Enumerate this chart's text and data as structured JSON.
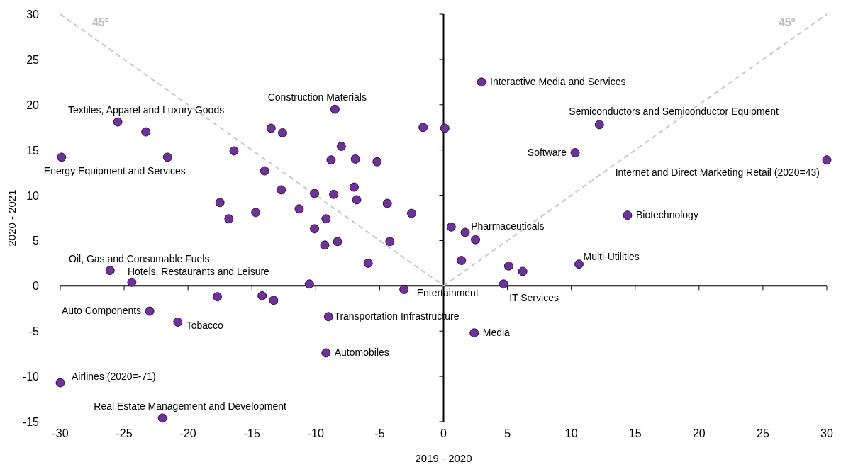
{
  "chart_data": {
    "type": "scatter",
    "xlabel": "2019 - 2020",
    "ylabel": "2020 - 2021",
    "xlim": [
      -30,
      30
    ],
    "xticks": [
      -30,
      -25,
      -20,
      -15,
      -10,
      -5,
      0,
      5,
      10,
      15,
      20,
      25,
      30
    ],
    "ylim": [
      -15,
      30
    ],
    "yticks": [
      -15,
      -10,
      -5,
      0,
      5,
      10,
      15,
      20,
      25,
      30
    ],
    "marker": "circle",
    "series": [
      {
        "type": "line",
        "color": "#c8c8c8",
        "line_style": "dashed",
        "marker": "none",
        "x": [
          -30,
          0
        ],
        "values": [
          30,
          0
        ]
      },
      {
        "type": "line",
        "color": "#c8c8c8",
        "line_style": "dashed",
        "marker": "none",
        "x": [
          0,
          30
        ],
        "values": [
          0,
          30
        ]
      },
      {
        "color": "#7030a0",
        "x": [
          2.97,
          12.2,
          10.3,
          30,
          14.4,
          10.6,
          5.1,
          6.2,
          4.7,
          2.4,
          1.7,
          0.6,
          2.5,
          1.4,
          0.1,
          -1.6,
          -8.5,
          -3.1,
          -9.0,
          -9.2,
          -10.5,
          -17.7,
          -14.2,
          -13.3,
          -23.0,
          -20.8,
          -30,
          -22.0,
          -26.1,
          -24.4,
          -25.5,
          -23.3,
          -29.9,
          -21.6,
          -16.4,
          -13.5,
          -12.6,
          -14.0,
          -17.5,
          -16.8,
          -14.7,
          -12.7,
          -11.3,
          -10.1,
          -10.1,
          -8.8,
          -8.0,
          -6.9,
          -5.2,
          -8.6,
          -9.2,
          -9.3,
          -8.3,
          -7.0,
          -6.8,
          -4.4,
          -2.5,
          -4.2,
          -5.9
        ],
        "values": [
          22.5,
          17.8,
          14.7,
          13.9,
          7.8,
          2.4,
          2.2,
          1.6,
          0.2,
          -5.2,
          5.9,
          6.5,
          5.1,
          2.8,
          17.4,
          17.5,
          19.5,
          -0.4,
          -3.4,
          -7.4,
          0.2,
          -1.2,
          -1.1,
          -1.6,
          -2.8,
          -4.0,
          -10.7,
          -14.6,
          1.7,
          0.4,
          18.1,
          17.0,
          14.2,
          14.2,
          14.9,
          17.4,
          16.9,
          12.7,
          9.2,
          7.4,
          8.1,
          10.6,
          8.5,
          10.2,
          6.3,
          13.9,
          15.4,
          14.0,
          13.7,
          10.1,
          7.4,
          4.5,
          4.9,
          10.9,
          9.5,
          9.1,
          8.0,
          4.9,
          2.5
        ]
      }
    ],
    "annotations": [
      {
        "text": "Interactive Media and Services",
        "x": 2.97,
        "y": 22.5
      },
      {
        "text": "Semiconductors and Semiconductor Equipment",
        "x": 12.2,
        "y": 17.8
      },
      {
        "text": "Software",
        "x": 10.3,
        "y": 14.7
      },
      {
        "text": "Internet and Direct Marketing Retail (2020=43)",
        "x": 30,
        "y": 13.9
      },
      {
        "text": "Biotechnology",
        "x": 14.4,
        "y": 7.8
      },
      {
        "text": "Multi-Utilities",
        "x": 10.6,
        "y": 2.4
      },
      {
        "text": "IT Services",
        "x": 4.7,
        "y": 0.2
      },
      {
        "text": "Media",
        "x": 2.4,
        "y": -5.2
      },
      {
        "text": "Pharmaceuticals",
        "x": 1.7,
        "y": 5.9
      },
      {
        "text": "Entertainment",
        "x": -3.1,
        "y": -0.4
      },
      {
        "text": "Transportation Infrastructure",
        "x": -9.0,
        "y": -3.4
      },
      {
        "text": "Automobiles",
        "x": -9.2,
        "y": -7.4
      },
      {
        "text": "Construction Materials",
        "x": -8.5,
        "y": 19.5
      },
      {
        "text": "Textiles, Apparel and Luxury Goods",
        "x": -25.5,
        "y": 18.1
      },
      {
        "text": "Energy Equipment and Services",
        "x": -29.9,
        "y": 14.2
      },
      {
        "text": "Oil, Gas and Consumable Fuels",
        "x": -26.1,
        "y": 1.7
      },
      {
        "text": "Hotels, Restaurants and Leisure",
        "x": -24.4,
        "y": 0.4
      },
      {
        "text": "Auto Components",
        "x": -23.0,
        "y": -2.8
      },
      {
        "text": "Tobacco",
        "x": -20.8,
        "y": -4.0
      },
      {
        "text": "Airlines (2020=-71)",
        "x": -30,
        "y": -10.7
      },
      {
        "text": "Real Estate Management and Development",
        "x": -22.0,
        "y": -14.6
      },
      "45º",
      "45º"
    ]
  }
}
